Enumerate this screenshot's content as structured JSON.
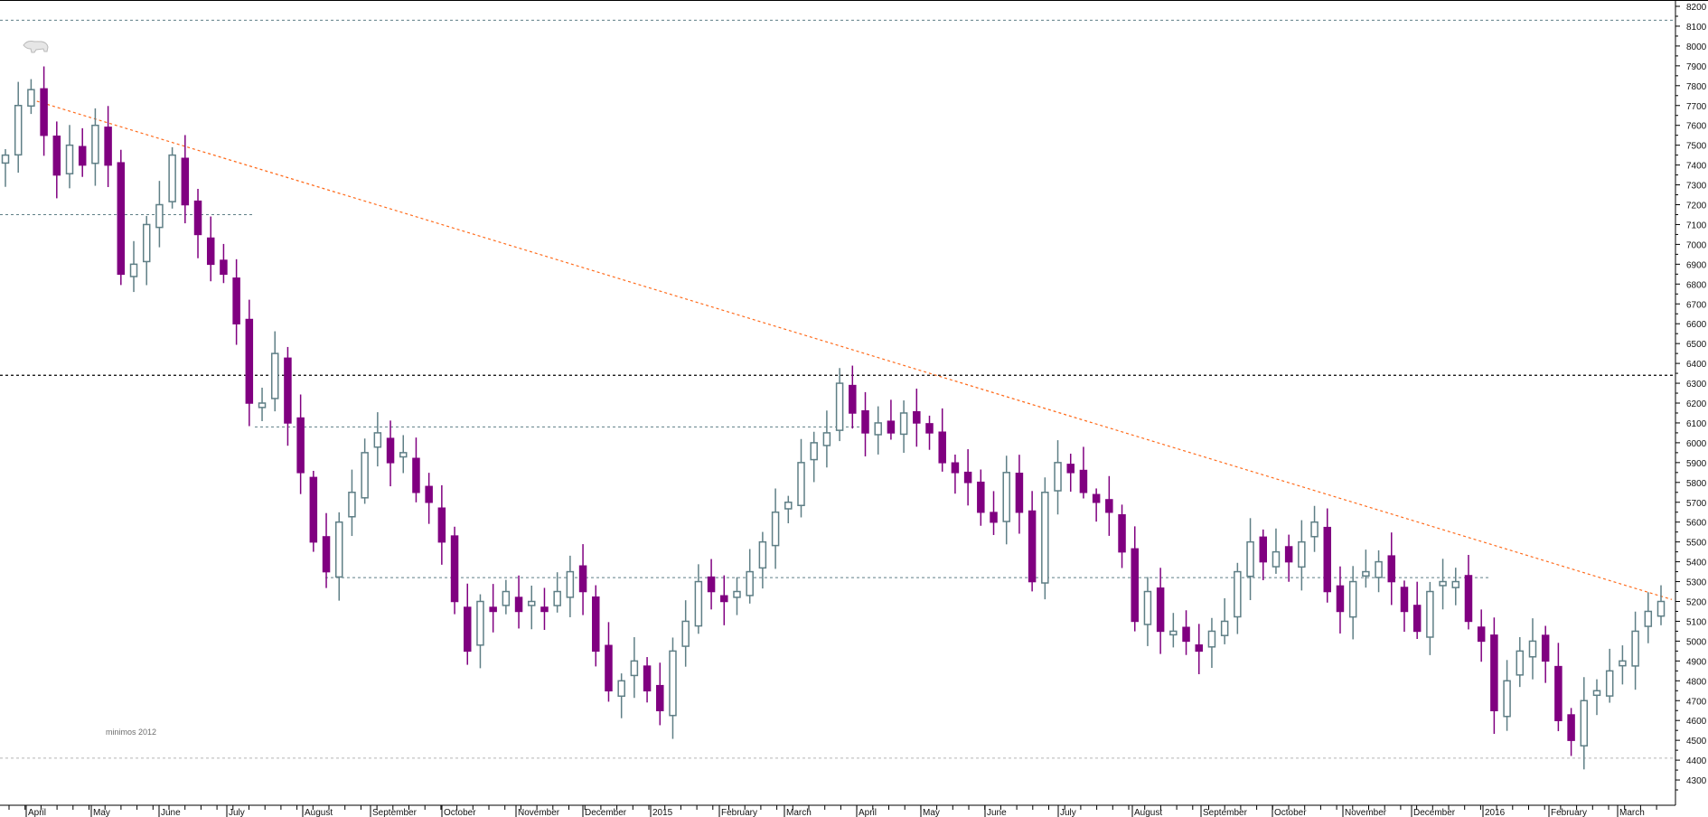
{
  "chart_data": {
    "type": "candlestick",
    "title": "",
    "xlabel": "",
    "ylabel": "",
    "ylim": [
      4250,
      8230
    ],
    "y_ticks": [
      8200,
      8100,
      8000,
      7900,
      7800,
      7700,
      7600,
      7500,
      7400,
      7300,
      7200,
      7100,
      7000,
      6900,
      6800,
      6700,
      6600,
      6500,
      6400,
      6300,
      6200,
      6100,
      6000,
      5900,
      5800,
      5700,
      5600,
      5500,
      5400,
      5300,
      5200,
      5100,
      5000,
      4900,
      4800,
      4700,
      4600,
      4500,
      4400,
      4300
    ],
    "x_ticks": [
      "April",
      "May",
      "June",
      "July",
      "August",
      "September",
      "October",
      "November",
      "December",
      "2015",
      "February",
      "March",
      "April",
      "May",
      "June",
      "July",
      "August",
      "September",
      "October",
      "November",
      "December",
      "2016",
      "February",
      "March"
    ],
    "period": "late March 2014 - late March 2016",
    "close": [
      7450,
      7700,
      7780,
      7550,
      7350,
      7500,
      7400,
      7600,
      7400,
      6850,
      6900,
      7100,
      7200,
      7450,
      7200,
      7050,
      6900,
      6850,
      6600,
      6200,
      6200,
      6450,
      6100,
      5850,
      5500,
      5350,
      5600,
      5750,
      5950,
      6050,
      5900,
      5950,
      5750,
      5700,
      5500,
      5200,
      4950,
      5200,
      5150,
      5250,
      5150,
      5200,
      5150,
      5250,
      5350,
      5250,
      4950,
      4750,
      4800,
      4900,
      4750,
      4650,
      4950,
      5100,
      5300,
      5250,
      5200,
      5250,
      5350,
      5500,
      5650,
      5700,
      5900,
      6000,
      6050,
      6300,
      6150,
      6050,
      6100,
      6050,
      6150,
      6100,
      6050,
      5900,
      5850,
      5800,
      5650,
      5600,
      5850,
      5650,
      5300,
      5750,
      5900,
      5850,
      5750,
      5700,
      5650,
      5450,
      5100,
      5250,
      5050,
      5050,
      5000,
      4950,
      5050,
      5100,
      5350,
      5500,
      5400,
      5450,
      5400,
      5500,
      5600,
      5250,
      5150,
      5300,
      5350,
      5400,
      5300,
      5150,
      5050,
      5250,
      5300,
      5300,
      5100,
      5000,
      4650,
      4800,
      4950,
      5000,
      4900,
      4600,
      4500,
      4700,
      4750,
      4850,
      4900,
      5050,
      5150,
      5200
    ],
    "trendline": {
      "from": 7730,
      "to": 5210,
      "color": "#ff6a1a"
    },
    "horizontal_levels": [
      {
        "value": 8130,
        "color": "#5f7f86"
      },
      {
        "value": 7150,
        "color": "#5f7f86"
      },
      {
        "value": 6340,
        "color": "#000000"
      },
      {
        "value": 6080,
        "color": "#5f7f86"
      },
      {
        "value": 5320,
        "color": "#5f7f86"
      },
      {
        "value": 4410,
        "color": "#b5b5b5"
      }
    ],
    "annotations": [
      "minimos 2012"
    ],
    "colors": {
      "down": "#800080",
      "up": "#5f7f86"
    }
  }
}
